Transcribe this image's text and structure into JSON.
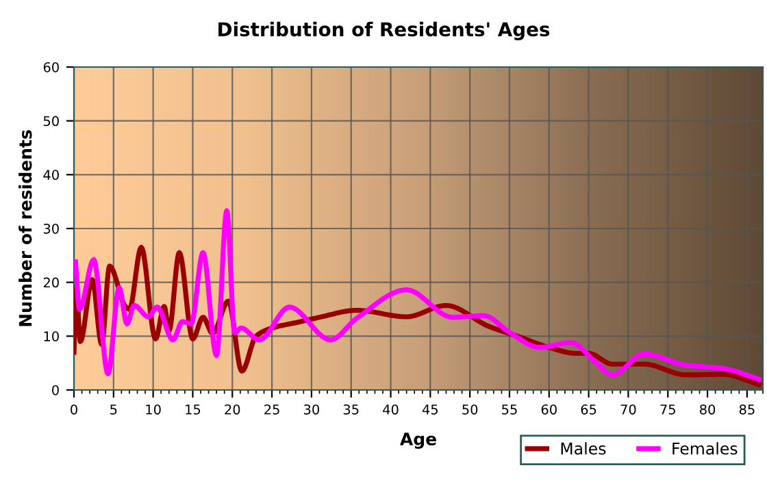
{
  "chart_data": {
    "type": "line",
    "title": "Distribution of Residents' Ages",
    "xlabel": "Age",
    "ylabel": "Number of residents",
    "xlim": [
      0,
      87
    ],
    "xticks": [
      0,
      5,
      10,
      15,
      20,
      25,
      30,
      35,
      40,
      45,
      50,
      55,
      60,
      65,
      70,
      75,
      80,
      85
    ],
    "ylim": [
      0,
      60
    ],
    "yticks": [
      0,
      10,
      20,
      30,
      40,
      50,
      60
    ],
    "grid": true,
    "legend": "bottom right",
    "marker": "none",
    "line_style": "solid",
    "series": [
      {
        "name": "Males",
        "color": "#990000",
        "x": [
          0,
          0.3,
          0.8,
          2.3,
          3.5,
          4.5,
          6.5,
          7,
          8.5,
          10.3,
          11.4,
          12,
          13.3,
          15,
          16.3,
          17.5,
          19.5,
          21.2,
          23,
          25,
          28,
          31,
          35.7,
          42,
          47,
          52.4,
          56,
          60,
          63.4,
          65,
          68,
          72,
          77.3,
          82,
          86.5
        ],
        "values": [
          7,
          19,
          9,
          20.5,
          8.5,
          23,
          15.5,
          15,
          26.5,
          9.5,
          15.5,
          11,
          25.5,
          9.5,
          13.5,
          10.5,
          16.5,
          3.5,
          10,
          11.5,
          12.5,
          13.5,
          14.8,
          13.6,
          15.7,
          11.8,
          10,
          7.9,
          6.8,
          6.8,
          4.8,
          4.8,
          2.8,
          2.9,
          1
        ]
      },
      {
        "name": "Females",
        "color": "#ff00ff",
        "x": [
          0.2,
          0.7,
          2.5,
          4.3,
          5.7,
          6.7,
          7.6,
          9.4,
          10.5,
          12.5,
          13.7,
          14.8,
          16.3,
          18,
          19.3,
          20.3,
          21.1,
          23.4,
          27.2,
          32.4,
          35.7,
          42,
          47.8,
          51.8,
          55,
          58.8,
          62.8,
          65.7,
          68,
          72,
          77.3,
          82,
          86.5
        ],
        "values": [
          23.8,
          15,
          24.2,
          3,
          19,
          12.3,
          15.7,
          13.6,
          15.4,
          9.3,
          12.7,
          12.3,
          25.5,
          6.4,
          33.3,
          10.6,
          11.5,
          9.3,
          15.4,
          9.3,
          13.3,
          18.6,
          13.5,
          13.8,
          10.7,
          7.9,
          8.8,
          5.4,
          2.8,
          6.7,
          4.6,
          4,
          2
        ]
      }
    ]
  }
}
